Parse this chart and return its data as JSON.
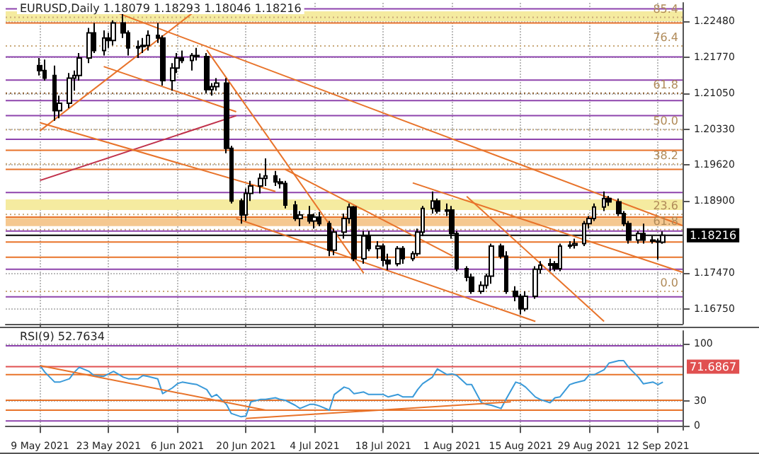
{
  "chart_data": [
    {
      "type": "candlestick",
      "title": "EURUSD,Daily 1.18079 1.18293 1.18046 1.18216",
      "color": "#000000",
      "grid": true,
      "tick_labels": "y",
      "marker": "none",
      "xlim": [
        "2021-05-02",
        "2021-09-17"
      ],
      "xticks": [
        {
          "value": "2021-05-09",
          "label": null
        },
        {
          "value": "2021-05-23",
          "label": null
        },
        {
          "value": "2021-06-06",
          "label": null
        },
        {
          "value": "2021-06-20",
          "label": null
        },
        {
          "value": "2021-07-04",
          "label": null
        },
        {
          "value": "2021-07-18",
          "label": null
        },
        {
          "value": "2021-08-01",
          "label": null
        },
        {
          "value": "2021-08-15",
          "label": null
        },
        {
          "value": "2021-08-29",
          "label": null
        },
        {
          "value": "2021-09-12",
          "label": null
        }
      ],
      "ylim": [
        1.1645,
        1.2285
      ],
      "yticks": [
        {
          "value": 1.2248,
          "label": "1.22480"
        },
        {
          "value": 1.2177,
          "label": "1.21770"
        },
        {
          "value": 1.2105,
          "label": "1.21050"
        },
        {
          "value": 1.2033,
          "label": "1.20330"
        },
        {
          "value": 1.1962,
          "label": "1.19620"
        },
        {
          "value": 1.189,
          "label": "1.18900"
        },
        {
          "value": 1.1747,
          "label": "1.17470"
        },
        {
          "value": 1.1675,
          "label": "1.16750"
        }
      ],
      "x": [
        "2021-05-09",
        "2021-05-10",
        "2021-05-12",
        "2021-05-13",
        "2021-05-15",
        "2021-05-16",
        "2021-05-17",
        "2021-05-19",
        "2021-05-20",
        "2021-05-22",
        "2021-05-23",
        "2021-05-24",
        "2021-05-26",
        "2021-05-27",
        "2021-05-29",
        "2021-05-30",
        "2021-05-31",
        "2021-06-02",
        "2021-06-03",
        "2021-06-05",
        "2021-06-06",
        "2021-06-07",
        "2021-06-09",
        "2021-06-10",
        "2021-06-12",
        "2021-06-13",
        "2021-06-14",
        "2021-06-16",
        "2021-06-17",
        "2021-06-19",
        "2021-06-20",
        "2021-06-21",
        "2021-06-23",
        "2021-06-24",
        "2021-06-26",
        "2021-06-27",
        "2021-06-28",
        "2021-06-30",
        "2021-07-01",
        "2021-07-03",
        "2021-07-04",
        "2021-07-05",
        "2021-07-07",
        "2021-07-08",
        "2021-07-10",
        "2021-07-11",
        "2021-07-12",
        "2021-07-14",
        "2021-07-15",
        "2021-07-17",
        "2021-07-18",
        "2021-07-19",
        "2021-07-21",
        "2021-07-22",
        "2021-07-24",
        "2021-07-25",
        "2021-07-26",
        "2021-07-28",
        "2021-07-29",
        "2021-07-31",
        "2021-08-01",
        "2021-08-02",
        "2021-08-04",
        "2021-08-05",
        "2021-08-07",
        "2021-08-08",
        "2021-08-09",
        "2021-08-11",
        "2021-08-12",
        "2021-08-14",
        "2021-08-15",
        "2021-08-16",
        "2021-08-18",
        "2021-08-19",
        "2021-08-21",
        "2021-08-22",
        "2021-08-23",
        "2021-08-25",
        "2021-08-26",
        "2021-08-28",
        "2021-08-29",
        "2021-08-30",
        "2021-09-01",
        "2021-09-02",
        "2021-09-04",
        "2021-09-05",
        "2021-09-06",
        "2021-09-08",
        "2021-09-09",
        "2021-09-11",
        "2021-09-12",
        "2021-09-13"
      ],
      "ohlc": [
        [
          1.216,
          1.2175,
          1.214,
          1.215
        ],
        [
          1.215,
          1.2172,
          1.213,
          1.2135
        ],
        [
          1.214,
          1.216,
          1.205,
          1.207
        ],
        [
          1.207,
          1.21,
          1.2055,
          1.2085
        ],
        [
          1.2085,
          1.2145,
          1.2075,
          1.2135
        ],
        [
          1.2135,
          1.215,
          1.211,
          1.214
        ],
        [
          1.214,
          1.2185,
          1.213,
          1.2175
        ],
        [
          1.2175,
          1.2235,
          1.2165,
          1.2225
        ],
        [
          1.2225,
          1.2245,
          1.2185,
          1.219
        ],
        [
          1.219,
          1.223,
          1.218,
          1.2215
        ],
        [
          1.2215,
          1.2225,
          1.2195,
          1.221
        ],
        [
          1.221,
          1.225,
          1.22,
          1.2245
        ],
        [
          1.2245,
          1.2266,
          1.2215,
          1.2225
        ],
        [
          1.2225,
          1.223,
          1.218,
          1.2195
        ],
        [
          1.2195,
          1.221,
          1.2175,
          1.2198
        ],
        [
          1.2198,
          1.2215,
          1.2185,
          1.22
        ],
        [
          1.22,
          1.223,
          1.219,
          1.222
        ],
        [
          1.222,
          1.2245,
          1.2205,
          1.2215
        ],
        [
          1.2215,
          1.222,
          1.212,
          1.213
        ],
        [
          1.213,
          1.2165,
          1.211,
          1.2155
        ],
        [
          1.2155,
          1.2185,
          1.2145,
          1.2175
        ],
        [
          1.2175,
          1.219,
          1.2165,
          1.217
        ],
        [
          1.217,
          1.2185,
          1.215,
          1.218
        ],
        [
          1.218,
          1.2195,
          1.217,
          1.2178
        ],
        [
          1.2178,
          1.2185,
          1.2105,
          1.2112
        ],
        [
          1.2112,
          1.2125,
          1.21,
          1.2118
        ],
        [
          1.2118,
          1.2135,
          1.211,
          1.2125
        ],
        [
          1.2125,
          1.2135,
          1.1985,
          1.1995
        ],
        [
          1.1995,
          1.2,
          1.1885,
          1.189
        ],
        [
          1.189,
          1.1895,
          1.1845,
          1.1862
        ],
        [
          1.1862,
          1.1915,
          1.185,
          1.1905
        ],
        [
          1.1905,
          1.193,
          1.189,
          1.192
        ],
        [
          1.192,
          1.1945,
          1.1905,
          1.1935
        ],
        [
          1.1935,
          1.1975,
          1.192,
          1.194
        ],
        [
          1.194,
          1.195,
          1.192,
          1.1928
        ],
        [
          1.1928,
          1.1935,
          1.1915,
          1.1925
        ],
        [
          1.1925,
          1.193,
          1.1875,
          1.1882
        ],
        [
          1.1882,
          1.189,
          1.185,
          1.1855
        ],
        [
          1.1855,
          1.187,
          1.184,
          1.1862
        ],
        [
          1.1862,
          1.188,
          1.1845,
          1.185
        ],
        [
          1.185,
          1.1865,
          1.1835,
          1.1858
        ],
        [
          1.1858,
          1.1868,
          1.184,
          1.1845
        ],
        [
          1.1845,
          1.185,
          1.178,
          1.1792
        ],
        [
          1.1792,
          1.1835,
          1.1782,
          1.1828
        ],
        [
          1.1828,
          1.1865,
          1.1815,
          1.1855
        ],
        [
          1.1855,
          1.1885,
          1.1845,
          1.1878
        ],
        [
          1.1878,
          1.188,
          1.177,
          1.1775
        ],
        [
          1.1775,
          1.183,
          1.1765,
          1.182
        ],
        [
          1.182,
          1.183,
          1.179,
          1.1795
        ],
        [
          1.1795,
          1.181,
          1.1775,
          1.18
        ],
        [
          1.18,
          1.1805,
          1.176,
          1.1772
        ],
        [
          1.1772,
          1.1785,
          1.1752,
          1.1765
        ],
        [
          1.1765,
          1.18,
          1.176,
          1.1795
        ],
        [
          1.1795,
          1.18,
          1.1765,
          1.1775
        ],
        [
          1.1775,
          1.179,
          1.177,
          1.1785
        ],
        [
          1.1785,
          1.1835,
          1.178,
          1.1828
        ],
        [
          1.1828,
          1.188,
          1.182,
          1.1875
        ],
        [
          1.1875,
          1.1909,
          1.1865,
          1.189
        ],
        [
          1.189,
          1.1895,
          1.1865,
          1.187
        ],
        [
          1.187,
          1.1885,
          1.186,
          1.1872
        ],
        [
          1.1872,
          1.188,
          1.1815,
          1.1825
        ],
        [
          1.1825,
          1.183,
          1.175,
          1.1755
        ],
        [
          1.1755,
          1.176,
          1.173,
          1.1738
        ],
        [
          1.1738,
          1.1745,
          1.1705,
          1.171
        ],
        [
          1.171,
          1.173,
          1.1705,
          1.1722
        ],
        [
          1.1722,
          1.1745,
          1.1715,
          1.174
        ],
        [
          1.174,
          1.1805,
          1.1725,
          1.18
        ],
        [
          1.18,
          1.1805,
          1.1775,
          1.178
        ],
        [
          1.178,
          1.179,
          1.1705,
          1.171
        ],
        [
          1.171,
          1.172,
          1.169,
          1.17
        ],
        [
          1.17,
          1.1705,
          1.1664,
          1.1675
        ],
        [
          1.1675,
          1.171,
          1.167,
          1.17
        ],
        [
          1.17,
          1.176,
          1.1695,
          1.1754
        ],
        [
          1.1754,
          1.177,
          1.1745,
          1.1762
        ],
        [
          1.1762,
          1.1775,
          1.175,
          1.1765
        ],
        [
          1.1765,
          1.177,
          1.175,
          1.1755
        ],
        [
          1.1755,
          1.1805,
          1.175,
          1.18
        ],
        [
          1.18,
          1.181,
          1.1795,
          1.1802
        ],
        [
          1.1802,
          1.1815,
          1.1795,
          1.1805
        ],
        [
          1.1805,
          1.185,
          1.18,
          1.1845
        ],
        [
          1.1845,
          1.186,
          1.1835,
          1.1855
        ],
        [
          1.1855,
          1.1885,
          1.185,
          1.1878
        ],
        [
          1.1878,
          1.1909,
          1.187,
          1.1895
        ],
        [
          1.1895,
          1.19,
          1.188,
          1.1888
        ],
        [
          1.1888,
          1.1895,
          1.186,
          1.1865
        ],
        [
          1.1865,
          1.187,
          1.184,
          1.1845
        ],
        [
          1.1845,
          1.185,
          1.1805,
          1.1812
        ],
        [
          1.1812,
          1.183,
          1.1805,
          1.1825
        ],
        [
          1.1825,
          1.1845,
          1.1805,
          1.1812
        ],
        [
          1.1812,
          1.182,
          1.1805,
          1.181
        ],
        [
          1.181,
          1.1815,
          1.1773,
          1.1808
        ],
        [
          1.18079,
          1.18293,
          1.18046,
          1.18216
        ]
      ],
      "series": [
        {
          "type": "line",
          "color": "#e8732a",
          "x": [
            "2021-05-25",
            "2021-09-17"
          ],
          "values": [
            1.2264,
            1.1841
          ]
        },
        {
          "type": "line",
          "color": "#e8732a",
          "x": [
            "2021-06-12",
            "2021-07-14"
          ],
          "values": [
            1.2191,
            1.1746
          ]
        },
        {
          "type": "line",
          "color": "#e8732a",
          "x": [
            "2021-05-09",
            "2021-06-09"
          ],
          "values": [
            1.203,
            1.2264
          ]
        },
        {
          "type": "line",
          "color": "#c0304a",
          "x": [
            "2021-05-09",
            "2021-06-18"
          ],
          "values": [
            1.1931,
            1.206
          ]
        },
        {
          "type": "line",
          "color": "#e8732a",
          "x": [
            "2021-05-09",
            "2021-06-26"
          ],
          "values": [
            1.2046,
            1.1909
          ]
        },
        {
          "type": "line",
          "color": "#e8732a",
          "x": [
            "2021-05-22",
            "2021-06-18"
          ],
          "values": [
            1.2158,
            1.2068
          ]
        },
        {
          "type": "line",
          "color": "#e8732a",
          "x": [
            "2021-06-18",
            "2021-08-18"
          ],
          "values": [
            1.1855,
            1.165
          ]
        },
        {
          "type": "line",
          "color": "#e8732a",
          "x": [
            "2021-06-28",
            "2021-08-01"
          ],
          "values": [
            1.1953,
            1.1781
          ]
        },
        {
          "type": "line",
          "color": "#e8732a",
          "x": [
            "2021-07-24",
            "2021-09-17"
          ],
          "values": [
            1.1926,
            1.1748
          ]
        },
        {
          "type": "line",
          "color": "#e8732a",
          "x": [
            "2021-08-04",
            "2021-09-01"
          ],
          "values": [
            1.1899,
            1.165
          ]
        }
      ],
      "bands": [
        {
          "axis": "y",
          "from": 1.2248,
          "to": 1.2268,
          "color": "#f5eba0"
        },
        {
          "axis": "y",
          "from": 1.1872,
          "to": 1.1893,
          "color": "#f5eba0"
        },
        {
          "axis": "y",
          "from": 1.184,
          "to": 1.1856,
          "color": "#f5c890"
        }
      ],
      "annotations": [
        {
          "text": "85.4",
          "y": 1.2256
        },
        {
          "text": "76.4",
          "y": 1.2199
        },
        {
          "text": "61.8",
          "y": 1.2105
        },
        {
          "text": "50.0",
          "y": 1.2032
        },
        {
          "text": "38.2",
          "y": 1.1964
        },
        {
          "text": "23.6",
          "y": 1.1863
        },
        {
          "text": "61.8",
          "y": 1.1833
        },
        {
          "text": "0.0",
          "y": 1.171
        }
      ],
      "ref_lines": [
        {
          "axis": "y",
          "value": 1.2256,
          "color": "#c8a878",
          "line_style": "dotted"
        },
        {
          "axis": "y",
          "value": 1.2199,
          "color": "#c8a878",
          "line_style": "dotted"
        },
        {
          "axis": "y",
          "value": 1.2105,
          "color": "#8b5a2b",
          "line_style": "dotted"
        },
        {
          "axis": "y",
          "value": 1.2032,
          "color": "#c8a878",
          "line_style": "dotted"
        },
        {
          "axis": "y",
          "value": 1.1964,
          "color": "#c8a878",
          "line_style": "dotted"
        },
        {
          "axis": "y",
          "value": 1.1863,
          "color": "#c8a878",
          "line_style": "dotted"
        },
        {
          "axis": "y",
          "value": 1.1833,
          "color": "#c8a878",
          "line_style": "dotted"
        },
        {
          "axis": "y",
          "value": 1.171,
          "color": "#c8a878",
          "line_style": "dotted"
        },
        {
          "axis": "y",
          "value": 1.18216,
          "label": "1.18216",
          "color": "#000000",
          "line_style": "solid"
        },
        {
          "axis": "y",
          "value": 1.2273,
          "color": "#8e44ad"
        },
        {
          "axis": "y",
          "value": 1.2177,
          "color": "#8e44ad"
        },
        {
          "axis": "y",
          "value": 1.2131,
          "color": "#8e44ad"
        },
        {
          "axis": "y",
          "value": 1.209,
          "color": "#8e44ad"
        },
        {
          "axis": "y",
          "value": 1.206,
          "color": "#8e44ad"
        },
        {
          "axis": "y",
          "value": 1.2013,
          "color": "#8e44ad"
        },
        {
          "axis": "y",
          "value": 1.1907,
          "color": "#8e44ad"
        },
        {
          "axis": "y",
          "value": 1.183,
          "color": "#8e44ad"
        },
        {
          "axis": "y",
          "value": 1.1754,
          "color": "#8e44ad"
        },
        {
          "axis": "y",
          "value": 1.1699,
          "color": "#8e44ad"
        },
        {
          "axis": "y",
          "value": 1.2245,
          "color": "#e8732a"
        },
        {
          "axis": "y",
          "value": 1.1991,
          "color": "#e8732a"
        },
        {
          "axis": "y",
          "value": 1.1953,
          "color": "#e8732a"
        },
        {
          "axis": "y",
          "value": 1.1858,
          "color": "#e8732a"
        },
        {
          "axis": "y",
          "value": 1.1808,
          "color": "#e8732a"
        },
        {
          "axis": "y",
          "value": 1.1778,
          "color": "#e8732a"
        }
      ]
    },
    {
      "type": "line",
      "title": "RSI(9) 52.7634",
      "grid": true,
      "marker": "none",
      "xlim": [
        "2021-05-02",
        "2021-09-17"
      ],
      "xticks": [
        {
          "value": "2021-05-09",
          "label": "9 May 2021"
        },
        {
          "value": "2021-05-23",
          "label": "23 May 2021"
        },
        {
          "value": "2021-06-06",
          "label": "6 Jun 2021"
        },
        {
          "value": "2021-06-20",
          "label": "20 Jun 2021"
        },
        {
          "value": "2021-07-04",
          "label": "4 Jul 2021"
        },
        {
          "value": "2021-07-18",
          "label": "18 Jul 2021"
        },
        {
          "value": "2021-08-01",
          "label": "1 Aug 2021"
        },
        {
          "value": "2021-08-15",
          "label": "15 Aug 2021"
        },
        {
          "value": "2021-08-29",
          "label": "29 Aug 2021"
        },
        {
          "value": "2021-09-12",
          "label": "12 Sep 2021"
        }
      ],
      "ylim": [
        -5,
        115
      ],
      "yticks": [
        0,
        30,
        100
      ],
      "x": [
        "2021-05-09",
        "2021-05-10",
        "2021-05-12",
        "2021-05-13",
        "2021-05-15",
        "2021-05-16",
        "2021-05-17",
        "2021-05-19",
        "2021-05-20",
        "2021-05-22",
        "2021-05-23",
        "2021-05-24",
        "2021-05-26",
        "2021-05-27",
        "2021-05-29",
        "2021-05-30",
        "2021-05-31",
        "2021-06-02",
        "2021-06-03",
        "2021-06-05",
        "2021-06-06",
        "2021-06-07",
        "2021-06-09",
        "2021-06-10",
        "2021-06-12",
        "2021-06-13",
        "2021-06-14",
        "2021-06-16",
        "2021-06-17",
        "2021-06-19",
        "2021-06-20",
        "2021-06-21",
        "2021-06-23",
        "2021-06-24",
        "2021-06-26",
        "2021-06-27",
        "2021-06-28",
        "2021-06-30",
        "2021-07-01",
        "2021-07-03",
        "2021-07-04",
        "2021-07-05",
        "2021-07-07",
        "2021-07-08",
        "2021-07-10",
        "2021-07-11",
        "2021-07-12",
        "2021-07-14",
        "2021-07-15",
        "2021-07-17",
        "2021-07-18",
        "2021-07-19",
        "2021-07-21",
        "2021-07-22",
        "2021-07-24",
        "2021-07-25",
        "2021-07-26",
        "2021-07-28",
        "2021-07-29",
        "2021-07-31",
        "2021-08-01",
        "2021-08-02",
        "2021-08-04",
        "2021-08-05",
        "2021-08-07",
        "2021-08-08",
        "2021-08-09",
        "2021-08-11",
        "2021-08-12",
        "2021-08-14",
        "2021-08-15",
        "2021-08-16",
        "2021-08-18",
        "2021-08-19",
        "2021-08-21",
        "2021-08-22",
        "2021-08-23",
        "2021-08-25",
        "2021-08-26",
        "2021-08-28",
        "2021-08-29",
        "2021-08-30",
        "2021-09-01",
        "2021-09-02",
        "2021-09-04",
        "2021-09-05",
        "2021-09-06",
        "2021-09-08",
        "2021-09-09",
        "2021-09-11",
        "2021-09-12",
        "2021-09-13"
      ],
      "series": [
        {
          "type": "line",
          "color": "#3a9ad9",
          "values": [
            73,
            65,
            53,
            53,
            57,
            65,
            71,
            66,
            61,
            60,
            63,
            66,
            59,
            57,
            57,
            61,
            60,
            57,
            39,
            46,
            51,
            53,
            51,
            50,
            44,
            35,
            38,
            26,
            15,
            11,
            12,
            29,
            32,
            32,
            34,
            32,
            31,
            25,
            21,
            26,
            26,
            24,
            19,
            38,
            47,
            45,
            39,
            41,
            38,
            38,
            38,
            35,
            38,
            35,
            35,
            44,
            51,
            59,
            69,
            62,
            63,
            61,
            50,
            50,
            28,
            26,
            25,
            21,
            32,
            53,
            51,
            47,
            35,
            32,
            28,
            34,
            35,
            50,
            52,
            55,
            62,
            62,
            68,
            76,
            79,
            79,
            71,
            59,
            51,
            53,
            50,
            53
          ]
        },
        {
          "type": "line",
          "color": "#e8732a",
          "x": [
            "2021-05-09",
            "2021-06-24"
          ],
          "values": [
            73,
            19
          ]
        },
        {
          "type": "line",
          "color": "#e8732a",
          "x": [
            "2021-06-20",
            "2021-08-13"
          ],
          "values": [
            9,
            29
          ]
        }
      ],
      "ref_lines": [
        {
          "axis": "y",
          "value": 97,
          "color": "#8e44ad"
        },
        {
          "axis": "y",
          "value": 71.6867,
          "label": "71.6867",
          "color": "#e05050",
          "line_style": "solid"
        },
        {
          "axis": "y",
          "value": 62,
          "color": "#e8732a"
        },
        {
          "axis": "y",
          "value": 31,
          "color": "#e8732a"
        },
        {
          "axis": "y",
          "value": 19,
          "color": "#e8732a"
        },
        {
          "axis": "y",
          "value": 6,
          "color": "#8e44ad"
        }
      ]
    }
  ]
}
